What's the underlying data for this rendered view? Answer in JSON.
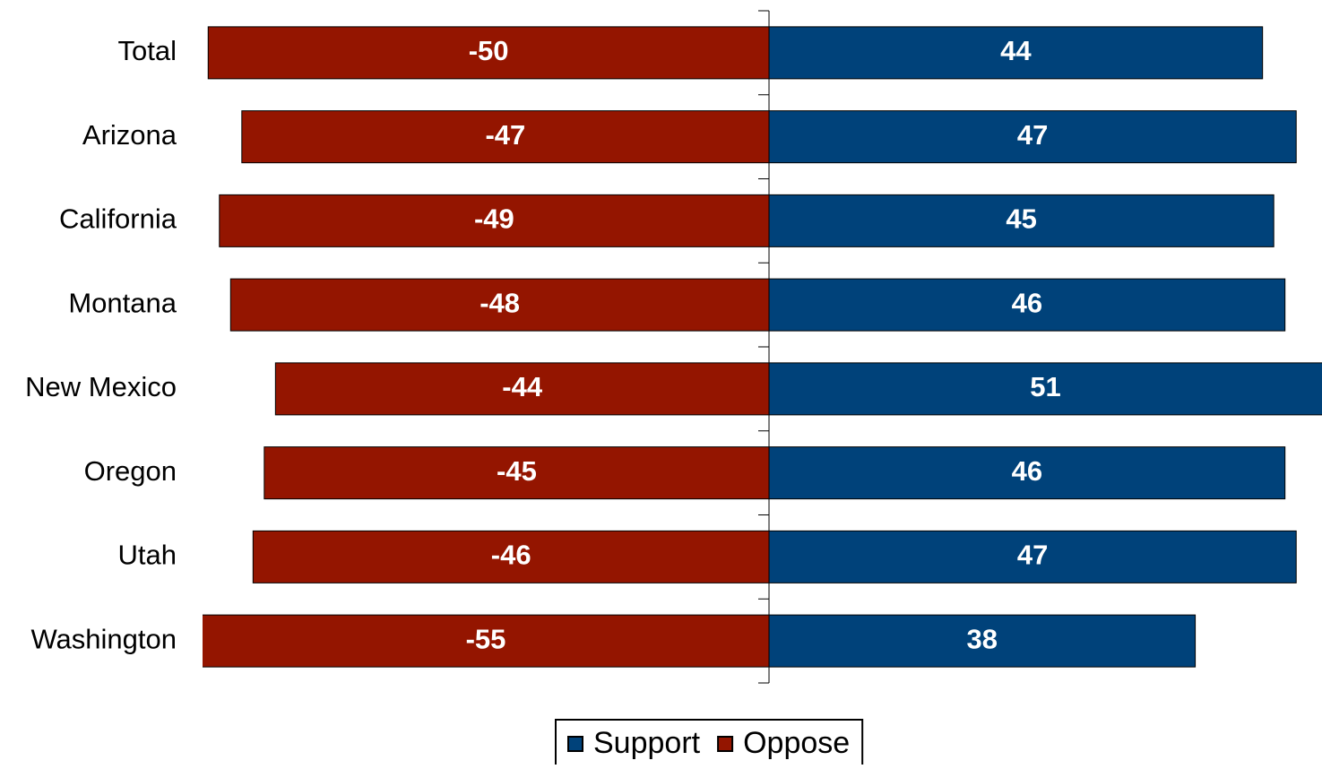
{
  "chart_data": {
    "type": "diverging_bar",
    "categories": [
      "Total",
      "Arizona",
      "California",
      "Montana",
      "New Mexico",
      "Oregon",
      "Utah",
      "Washington"
    ],
    "series": [
      {
        "name": "Support",
        "color": "#00427a",
        "values": [
          44,
          47,
          45,
          46,
          51,
          46,
          47,
          38
        ]
      },
      {
        "name": "Oppose",
        "color": "#941500",
        "values": [
          -50,
          -47,
          -49,
          -48,
          -44,
          -45,
          -46,
          -55
        ]
      }
    ],
    "xlim": [
      -50.5,
      49.3
    ]
  }
}
